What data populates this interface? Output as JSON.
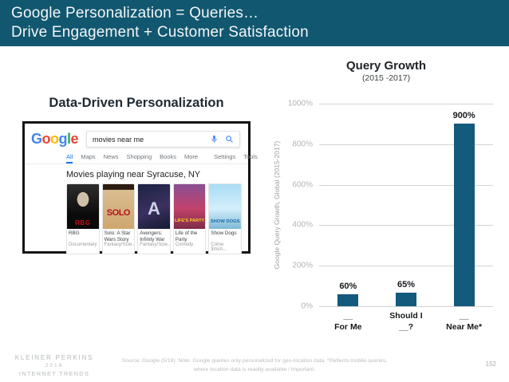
{
  "header": {
    "title_line1": "Google Personalization = Queries…",
    "title_line2": "Drive Engagement + Customer Satisfaction",
    "background_color": "#11576F"
  },
  "left": {
    "heading": "Data-Driven Personalization",
    "google_screenshot": {
      "logo_letters": [
        "G",
        "o",
        "o",
        "g",
        "l",
        "e"
      ],
      "logo_colors": [
        "#4285F4",
        "#EA4335",
        "#FBBC05",
        "#4285F4",
        "#34A853",
        "#EA4335"
      ],
      "search_query": "movies near me",
      "icons": {
        "mic": "mic-icon",
        "search": "search-icon"
      },
      "tabs": [
        "All",
        "Maps",
        "News",
        "Shopping",
        "Books",
        "More"
      ],
      "right_tabs": [
        "Settings",
        "Tools"
      ],
      "results_heading": "Movies playing near Syracuse, NY",
      "movies": [
        {
          "poster_text": "RBG",
          "title": "RBG",
          "genre": "Documentary"
        },
        {
          "poster_text": "SOLO",
          "title": "Solo: A Star Wars Story",
          "genre": "Fantasy/Scie..."
        },
        {
          "poster_text": "A",
          "title": "Avengers: Infinity War",
          "genre": "Fantasy/Scie..."
        },
        {
          "poster_text": "LIFE'S PARTY",
          "title": "Life of the Party",
          "genre": "Comedy"
        },
        {
          "poster_text": "SHOW DOGS",
          "title": "Show Dogs",
          "genre": "Crime film/A..."
        }
      ]
    }
  },
  "chart_data": {
    "type": "bar",
    "title": "Query Growth",
    "subtitle": "(2015 -2017)",
    "ylabel": "Google Query Growth, Global (2015-2017)",
    "xlabel": "",
    "ylim": [
      0,
      1000
    ],
    "yticks": [
      {
        "value": 0,
        "label": "0%"
      },
      {
        "value": 200,
        "label": "200%"
      },
      {
        "value": 400,
        "label": "400%"
      },
      {
        "value": 600,
        "label": "600%"
      },
      {
        "value": 800,
        "label": "800%"
      },
      {
        "value": 1000,
        "label": "1000%"
      }
    ],
    "bars": [
      {
        "label_line1": "__",
        "label_line2": "For Me",
        "value": 60,
        "value_label": "60%"
      },
      {
        "label_line1": "Should I",
        "label_line2": "__?",
        "value": 65,
        "value_label": "65%"
      },
      {
        "label_line1": "__",
        "label_line2": "Near Me*",
        "value": 900,
        "value_label": "900%"
      }
    ],
    "bar_color": "#135A7D",
    "grid": true,
    "legend_position": "none"
  },
  "footer": {
    "logo_line1": "KLEINER PERKINS",
    "logo_line2": "2018",
    "logo_line3": "INTERNET TRENDS",
    "source_line1": "Source: Google (5/18). Note: Google queries only personalized for geo-location data. *Reflects mobile queries,",
    "source_line2": "where location data is readily available / important.",
    "page_number": "152"
  }
}
